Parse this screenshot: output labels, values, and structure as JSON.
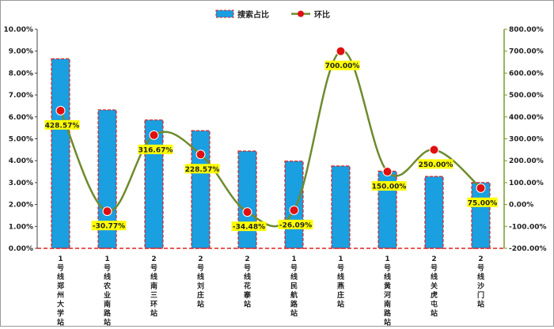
{
  "chart_data": {
    "type": "bar+line",
    "categories": [
      "1号线郑州大学站",
      "1号线农业南路站",
      "2号线南三环站",
      "2号线刘庄站",
      "2号线花寨站",
      "1号线民航路站",
      "1号线燕庄站",
      "1号线黄河南路站",
      "2号线关虎屯站",
      "2号线沙门站"
    ],
    "series": [
      {
        "name": "搜索占比",
        "type": "bar",
        "axis": "left",
        "color": "#1a9fe0",
        "values": [
          8.65,
          6.32,
          5.86,
          5.37,
          4.44,
          3.98,
          3.76,
          3.52,
          3.28,
          3.0
        ]
      },
      {
        "name": "环比",
        "type": "line",
        "axis": "right",
        "line_color": "#6e8b2e",
        "marker_color": "#e01010",
        "values": [
          428.57,
          -30.77,
          316.67,
          228.57,
          -34.48,
          -26.09,
          700.0,
          150.0,
          250.0,
          75.0
        ],
        "labels": [
          "428.57%",
          "-30.77%",
          "316.67%",
          "228.57%",
          "-34.48%",
          "-26.09%",
          "700.00%",
          "150.00%",
          "250.00%",
          "75.00%"
        ]
      }
    ],
    "y_left": {
      "min": 0,
      "max": 10,
      "step": 1,
      "tick_labels": [
        "0.00%",
        "1.00%",
        "2.00%",
        "3.00%",
        "4.00%",
        "5.00%",
        "6.00%",
        "7.00%",
        "8.00%",
        "9.00%",
        "10.00%"
      ]
    },
    "y_right": {
      "min": -200,
      "max": 800,
      "step": 100,
      "tick_labels": [
        "-200.00%",
        "-100.00%",
        "0.00%",
        "100.00%",
        "200.00%",
        "300.00%",
        "400.00%",
        "500.00%",
        "600.00%",
        "700.00%",
        "800.00%"
      ]
    },
    "legend_position": "top-center",
    "grid": false,
    "colors": {
      "bar_fill": "#1a9fe0",
      "bar_border": "#e02020",
      "line": "#6e8b2e",
      "marker": "#e01010",
      "label_bg": "#ffff00",
      "right_axis": "#7a9a2a"
    }
  }
}
